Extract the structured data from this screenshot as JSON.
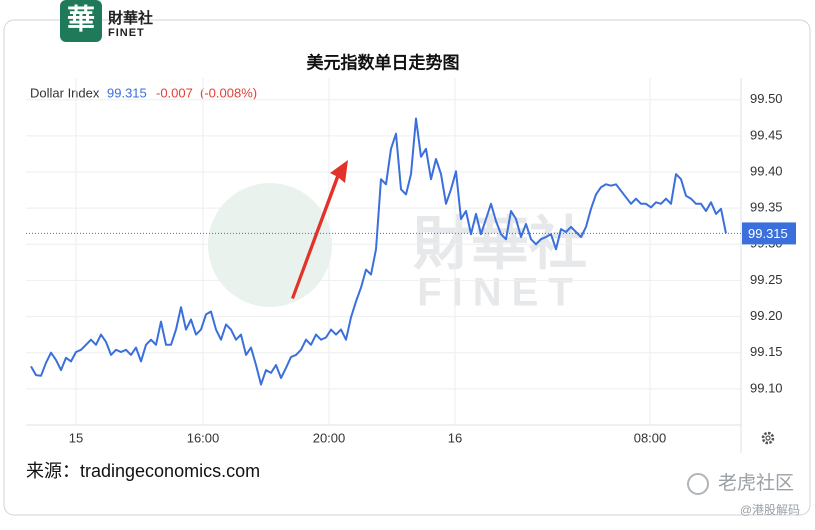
{
  "header": {
    "logo_cn": "財華社",
    "logo_en": "FINET"
  },
  "chart_data": {
    "type": "line",
    "title": "美元指数单日走势图",
    "legend": {
      "name": "Dollar Index",
      "change": -0.007,
      "change_pct": "(-0.008%)"
    },
    "last_value": 99.315,
    "series": [
      {
        "name": "Dollar Index",
        "color": "#3a6fdc",
        "values": [
          99.131,
          99.119,
          99.118,
          99.136,
          99.15,
          99.14,
          99.126,
          99.143,
          99.138,
          99.151,
          99.154,
          99.161,
          99.168,
          99.161,
          99.175,
          99.165,
          99.147,
          99.154,
          99.151,
          99.154,
          99.147,
          99.157,
          99.138,
          99.161,
          99.168,
          99.161,
          99.193,
          99.161,
          99.161,
          99.182,
          99.213,
          99.182,
          99.196,
          99.175,
          99.182,
          99.203,
          99.207,
          99.182,
          99.168,
          99.189,
          99.182,
          99.168,
          99.175,
          99.147,
          99.157,
          99.133,
          99.106,
          99.126,
          99.122,
          99.133,
          99.115,
          99.129,
          99.144,
          99.147,
          99.154,
          99.168,
          99.161,
          99.175,
          99.168,
          99.171,
          99.182,
          99.175,
          99.182,
          99.168,
          99.199,
          99.221,
          99.24,
          99.265,
          99.258,
          99.293,
          99.39,
          99.383,
          99.432,
          99.453,
          99.376,
          99.369,
          99.397,
          99.474,
          99.421,
          99.432,
          99.39,
          99.418,
          99.397,
          99.356,
          99.376,
          99.401,
          99.335,
          99.346,
          99.314,
          99.342,
          99.314,
          99.335,
          99.356,
          99.332,
          99.314,
          99.307,
          99.346,
          99.335,
          99.31,
          99.328,
          99.307,
          99.3,
          99.307,
          99.31,
          99.314,
          99.293,
          99.321,
          99.317,
          99.324,
          99.317,
          99.31,
          99.324,
          99.349,
          99.369,
          99.379,
          99.383,
          99.381,
          99.383,
          99.374,
          99.365,
          99.356,
          99.363,
          99.356,
          99.356,
          99.351,
          99.358,
          99.356,
          99.363,
          99.356,
          99.397,
          99.39,
          99.367,
          99.363,
          99.356,
          99.356,
          99.346,
          99.358,
          99.342,
          99.349,
          99.315
        ]
      }
    ],
    "xlim": [
      0,
      142
    ],
    "xticks": [
      {
        "value": 9,
        "label": "15"
      },
      {
        "value": 34.4,
        "label": "16:00"
      },
      {
        "value": 59.6,
        "label": "20:00"
      },
      {
        "value": 84.8,
        "label": "16"
      },
      {
        "value": 123.8,
        "label": "08:00"
      }
    ],
    "ylim": [
      99.05,
      99.53
    ],
    "yticks": [
      {
        "value": 99.1,
        "label": "99.10"
      },
      {
        "value": 99.15,
        "label": "99.15"
      },
      {
        "value": 99.2,
        "label": "99.20"
      },
      {
        "value": 99.25,
        "label": "99.25"
      },
      {
        "value": 99.3,
        "label": "99.30"
      },
      {
        "value": 99.35,
        "label": "99.35"
      },
      {
        "value": 99.4,
        "label": "99.40"
      },
      {
        "value": 99.45,
        "label": "99.45"
      },
      {
        "value": 99.5,
        "label": "99.50"
      }
    ],
    "grid": true
  },
  "source": "来源：tradingeconomics.com",
  "watermark": {
    "cn": "財華社",
    "en": "FINET",
    "site": "老虎社区",
    "handle": "@港股解码"
  }
}
